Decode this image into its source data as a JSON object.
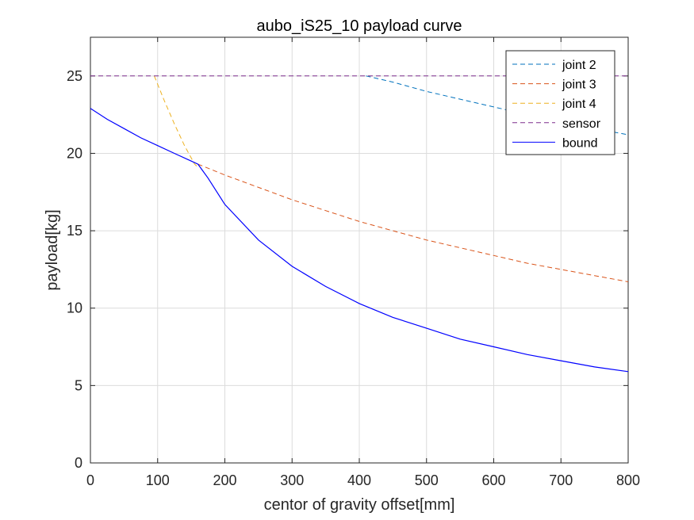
{
  "chart_data": {
    "type": "line",
    "title": "aubo_iS25_10 payload curve",
    "xlabel": "centor of gravity offset[mm]",
    "ylabel": "payload[kg]",
    "xlim": [
      0,
      800
    ],
    "ylim": [
      0,
      27.5
    ],
    "xticks": [
      0,
      100,
      200,
      300,
      400,
      500,
      600,
      700,
      800
    ],
    "yticks": [
      0,
      5,
      10,
      15,
      20,
      25
    ],
    "grid": true,
    "legend_position": "top-right",
    "series": [
      {
        "name": "joint 2",
        "style": "dashed",
        "color": "#0072BD",
        "x": [
          410,
          450,
          500,
          550,
          600,
          650,
          700,
          750,
          800
        ],
        "y": [
          25.0,
          24.6,
          24.0,
          23.5,
          23.0,
          22.5,
          22.1,
          21.6,
          21.2
        ]
      },
      {
        "name": "joint 3",
        "style": "dashed",
        "color": "#D95319",
        "x": [
          160,
          200,
          250,
          300,
          350,
          400,
          450,
          500,
          550,
          600,
          650,
          700,
          750,
          800
        ],
        "y": [
          19.3,
          18.6,
          17.8,
          17.0,
          16.3,
          15.6,
          15.0,
          14.4,
          13.9,
          13.4,
          12.9,
          12.5,
          12.1,
          11.7
        ]
      },
      {
        "name": "joint 4",
        "style": "dashed",
        "color": "#EDB120",
        "x": [
          95,
          110,
          125,
          140,
          155,
          160
        ],
        "y": [
          25.0,
          23.4,
          21.9,
          20.5,
          19.3,
          19.1
        ]
      },
      {
        "name": "sensor",
        "style": "dashed",
        "color": "#7E2F8E",
        "x": [
          0,
          800
        ],
        "y": [
          25.0,
          25.0
        ]
      },
      {
        "name": "bound",
        "style": "solid",
        "color": "#0000FF",
        "x": [
          0,
          25,
          50,
          75,
          100,
          125,
          150,
          160,
          175,
          200,
          250,
          300,
          350,
          400,
          450,
          500,
          550,
          600,
          650,
          700,
          750,
          800
        ],
        "y": [
          22.9,
          22.2,
          21.6,
          21.0,
          20.5,
          20.0,
          19.5,
          19.3,
          18.4,
          16.7,
          14.4,
          12.7,
          11.4,
          10.3,
          9.4,
          8.7,
          8.0,
          7.5,
          7.0,
          6.6,
          6.2,
          5.9
        ]
      }
    ]
  }
}
